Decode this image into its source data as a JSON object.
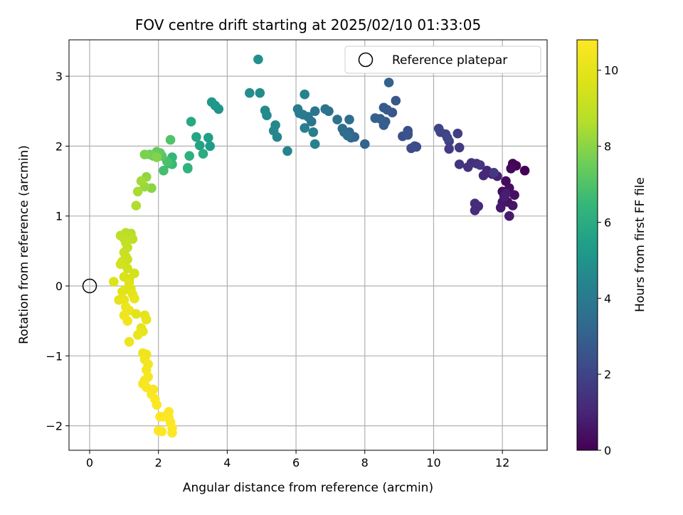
{
  "chart_data": {
    "type": "scatter",
    "title": "FOV centre drift starting at 2025/02/10 01:33:05",
    "xlabel": "Angular distance from reference (arcmin)",
    "ylabel": "Rotation from reference (arcmin)",
    "xlim": [
      -0.6,
      13.3
    ],
    "ylim": [
      -2.35,
      3.52
    ],
    "xticks": [
      0,
      2,
      4,
      6,
      8,
      10,
      12
    ],
    "yticks": [
      -2,
      -1,
      0,
      1,
      2,
      3
    ],
    "grid": true,
    "colormap": "viridis",
    "colorbar": {
      "label": "Hours from first FF file",
      "range": [
        0,
        10.8
      ],
      "ticks": [
        0,
        2,
        4,
        6,
        8,
        10
      ]
    },
    "legend": {
      "position": "top-right",
      "entries": [
        {
          "label": "Reference platepar",
          "marker": "open-circle",
          "x": 0,
          "y": 0
        }
      ]
    },
    "points": [
      [
        12.65,
        1.65,
        0.0
      ],
      [
        12.3,
        1.75,
        0.06
      ],
      [
        12.4,
        1.72,
        0.12
      ],
      [
        12.25,
        1.68,
        0.18
      ],
      [
        12.1,
        1.5,
        0.24
      ],
      [
        12.0,
        1.35,
        0.3
      ],
      [
        12.2,
        1.4,
        0.36
      ],
      [
        12.35,
        1.3,
        0.42
      ],
      [
        12.15,
        1.2,
        0.48
      ],
      [
        12.3,
        1.15,
        0.54
      ],
      [
        12.0,
        1.2,
        0.6
      ],
      [
        11.95,
        1.12,
        0.66
      ],
      [
        12.2,
        1.0,
        0.72
      ],
      [
        12.1,
        1.32,
        0.78
      ],
      [
        12.05,
        1.28,
        0.84
      ],
      [
        11.85,
        1.57,
        0.9
      ],
      [
        11.7,
        1.6,
        0.96
      ],
      [
        11.55,
        1.65,
        1.02
      ],
      [
        11.45,
        1.58,
        1.08
      ],
      [
        11.3,
        1.14,
        1.14
      ],
      [
        11.2,
        1.08,
        1.2
      ],
      [
        11.2,
        1.18,
        1.26
      ],
      [
        11.25,
        1.75,
        1.32
      ],
      [
        11.1,
        1.76,
        1.38
      ],
      [
        11.0,
        1.7,
        1.44
      ],
      [
        10.75,
        1.74,
        1.5
      ],
      [
        11.35,
        1.73,
        1.56
      ],
      [
        11.75,
        1.62,
        1.62
      ],
      [
        10.75,
        1.98,
        1.68
      ],
      [
        10.45,
        1.96,
        1.74
      ],
      [
        10.7,
        2.18,
        1.8
      ],
      [
        10.45,
        2.07,
        1.86
      ],
      [
        10.35,
        2.17,
        1.92
      ],
      [
        10.2,
        2.2,
        1.98
      ],
      [
        10.15,
        2.25,
        2.04
      ],
      [
        10.4,
        2.12,
        2.1
      ],
      [
        9.5,
        1.99,
        2.16
      ],
      [
        9.35,
        1.97,
        2.22
      ],
      [
        9.45,
        2.0,
        2.28
      ],
      [
        9.25,
        2.22,
        2.34
      ],
      [
        9.1,
        2.14,
        2.4
      ],
      [
        9.25,
        2.18,
        2.46
      ],
      [
        9.25,
        2.16,
        2.52
      ],
      [
        8.8,
        2.48,
        2.58
      ],
      [
        8.9,
        2.65,
        2.64
      ],
      [
        8.65,
        2.52,
        2.7
      ],
      [
        8.55,
        2.55,
        2.76
      ],
      [
        8.6,
        2.35,
        2.82
      ],
      [
        8.55,
        2.3,
        2.88
      ],
      [
        8.45,
        2.39,
        2.94
      ],
      [
        8.3,
        2.4,
        3.0
      ],
      [
        8.7,
        2.91,
        3.06
      ],
      [
        8.0,
        2.03,
        3.12
      ],
      [
        7.7,
        2.13,
        3.18
      ],
      [
        7.6,
        2.12,
        3.24
      ],
      [
        7.55,
        2.2,
        3.3
      ],
      [
        7.4,
        2.2,
        3.36
      ],
      [
        7.35,
        2.25,
        3.42
      ],
      [
        7.5,
        2.15,
        3.48
      ],
      [
        7.55,
        2.38,
        3.54
      ],
      [
        7.2,
        2.38,
        3.6
      ],
      [
        6.95,
        2.5,
        3.66
      ],
      [
        6.85,
        2.53,
        3.72
      ],
      [
        6.55,
        2.5,
        3.78
      ],
      [
        6.45,
        2.35,
        3.84
      ],
      [
        6.35,
        2.42,
        3.9
      ],
      [
        6.2,
        2.45,
        3.96
      ],
      [
        6.1,
        2.47,
        4.02
      ],
      [
        6.05,
        2.53,
        4.08
      ],
      [
        6.25,
        2.26,
        4.14
      ],
      [
        6.5,
        2.2,
        4.2
      ],
      [
        6.55,
        2.03,
        4.26
      ],
      [
        6.25,
        2.74,
        4.32
      ],
      [
        5.75,
        1.93,
        4.38
      ],
      [
        5.45,
        2.13,
        4.44
      ],
      [
        5.35,
        2.22,
        4.5
      ],
      [
        5.4,
        2.3,
        4.56
      ],
      [
        5.15,
        2.44,
        4.62
      ],
      [
        5.1,
        2.51,
        4.68
      ],
      [
        4.95,
        2.76,
        4.74
      ],
      [
        4.65,
        2.76,
        4.8
      ],
      [
        4.9,
        3.24,
        4.86
      ],
      [
        3.75,
        2.53,
        4.98
      ],
      [
        3.65,
        2.58,
        5.1
      ],
      [
        3.55,
        2.63,
        5.22
      ],
      [
        3.5,
        2.0,
        5.34
      ],
      [
        3.45,
        2.12,
        5.46
      ],
      [
        3.2,
        2.01,
        5.58
      ],
      [
        3.1,
        2.13,
        5.7
      ],
      [
        2.95,
        2.35,
        5.82
      ],
      [
        3.3,
        1.89,
        5.94
      ],
      [
        2.85,
        1.68,
        6.06
      ],
      [
        2.9,
        1.86,
        6.18
      ],
      [
        2.85,
        1.69,
        6.3
      ],
      [
        2.4,
        1.84,
        6.42
      ],
      [
        2.4,
        1.74,
        6.54
      ],
      [
        2.3,
        1.75,
        6.66
      ],
      [
        2.15,
        1.65,
        6.78
      ],
      [
        2.25,
        1.78,
        6.9
      ],
      [
        2.35,
        2.09,
        7.02
      ],
      [
        2.1,
        1.86,
        7.14
      ],
      [
        2.05,
        1.9,
        7.26
      ],
      [
        1.95,
        1.92,
        7.38
      ],
      [
        1.85,
        1.86,
        7.5
      ],
      [
        1.75,
        1.88,
        7.62
      ],
      [
        1.6,
        1.88,
        7.74
      ],
      [
        1.95,
        1.84,
        7.86
      ],
      [
        1.8,
        1.4,
        7.98
      ],
      [
        1.65,
        1.56,
        8.1
      ],
      [
        1.6,
        1.42,
        8.22
      ],
      [
        1.5,
        1.5,
        8.34
      ],
      [
        1.4,
        1.35,
        8.46
      ],
      [
        1.35,
        1.15,
        8.58
      ],
      [
        1.2,
        0.75,
        8.7
      ],
      [
        1.05,
        0.76,
        8.76
      ],
      [
        0.9,
        0.72,
        8.82
      ],
      [
        1.25,
        0.67,
        8.88
      ],
      [
        1.0,
        0.68,
        8.94
      ],
      [
        1.05,
        0.62,
        9.0
      ],
      [
        1.1,
        0.55,
        9.06
      ],
      [
        1.0,
        0.48,
        9.12
      ],
      [
        1.05,
        0.42,
        9.18
      ],
      [
        1.1,
        0.38,
        9.24
      ],
      [
        0.95,
        0.35,
        9.3
      ],
      [
        1.1,
        0.25,
        9.36
      ],
      [
        0.9,
        0.31,
        9.42
      ],
      [
        1.3,
        0.18,
        9.48
      ],
      [
        1.15,
        0.1,
        9.54
      ],
      [
        1.0,
        0.13,
        9.6
      ],
      [
        0.7,
        0.06,
        9.66
      ],
      [
        1.15,
        0.05,
        9.72
      ],
      [
        1.05,
        -0.05,
        9.78
      ],
      [
        1.2,
        -0.04,
        9.84
      ],
      [
        0.95,
        -0.08,
        9.9
      ],
      [
        1.25,
        -0.12,
        9.96
      ],
      [
        0.85,
        -0.2,
        10.02
      ],
      [
        1.0,
        -0.2,
        10.08
      ],
      [
        1.3,
        -0.18,
        10.14
      ],
      [
        1.05,
        -0.3,
        10.2
      ],
      [
        1.15,
        -0.35,
        10.26
      ],
      [
        1.0,
        -0.42,
        10.32
      ],
      [
        1.1,
        -0.5,
        10.38
      ],
      [
        1.35,
        -0.4,
        9.9
      ],
      [
        1.6,
        -0.42,
        9.96
      ],
      [
        1.65,
        -0.48,
        10.02
      ],
      [
        1.5,
        -0.6,
        10.08
      ],
      [
        1.55,
        -0.65,
        10.14
      ],
      [
        1.4,
        -0.7,
        10.2
      ],
      [
        1.15,
        -0.8,
        10.26
      ],
      [
        1.55,
        -0.96,
        10.3
      ],
      [
        1.65,
        -0.98,
        10.34
      ],
      [
        1.6,
        -1.05,
        10.38
      ],
      [
        1.7,
        -1.12,
        10.42
      ],
      [
        1.65,
        -1.2,
        10.46
      ],
      [
        1.7,
        -1.3,
        10.5
      ],
      [
        1.6,
        -1.35,
        10.54
      ],
      [
        1.55,
        -1.4,
        10.58
      ],
      [
        1.65,
        -1.45,
        10.62
      ],
      [
        1.85,
        -1.48,
        10.66
      ],
      [
        1.8,
        -1.55,
        10.7
      ],
      [
        1.9,
        -1.62,
        10.72
      ],
      [
        1.95,
        -1.7,
        10.74
      ],
      [
        2.05,
        -1.87,
        10.76
      ],
      [
        2.15,
        -1.87,
        10.78
      ],
      [
        2.3,
        -1.8,
        10.8
      ],
      [
        2.3,
        -1.88,
        10.82
      ],
      [
        2.35,
        -1.95,
        10.84
      ],
      [
        2.4,
        -2.03,
        10.86
      ],
      [
        2.4,
        -2.1,
        10.88
      ],
      [
        2.0,
        -2.07,
        10.9
      ],
      [
        2.1,
        -2.08,
        10.92
      ]
    ]
  }
}
